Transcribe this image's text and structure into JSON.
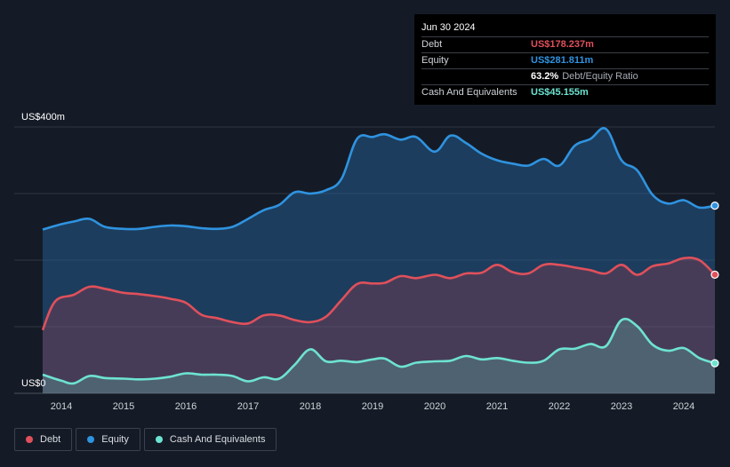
{
  "tooltip": {
    "date": "Jun 30 2024",
    "debt_label": "Debt",
    "debt_value": "US$178.237m",
    "equity_label": "Equity",
    "equity_value": "US$281.811m",
    "ratio_pct": "63.2%",
    "ratio_label": "Debt/Equity Ratio",
    "cash_label": "Cash And Equivalents",
    "cash_value": "US$45.155m"
  },
  "colors": {
    "debt": "#e0505b",
    "equity": "#2f93e0",
    "cash": "#6de3d1",
    "background": "#151b26"
  },
  "legend": [
    {
      "label": "Debt",
      "color": "#e0505b"
    },
    {
      "label": "Equity",
      "color": "#2f93e0"
    },
    {
      "label": "Cash And Equivalents",
      "color": "#6de3d1"
    }
  ],
  "chart_data": {
    "type": "area",
    "title": "",
    "xlabel": "",
    "ylabel": "",
    "ylim": [
      0,
      400
    ],
    "y_tick_labels": [
      {
        "value": 400,
        "label": "US$400m"
      },
      {
        "value": 0,
        "label": "US$0"
      }
    ],
    "x_tick_labels": [
      "2014",
      "2015",
      "2016",
      "2017",
      "2018",
      "2019",
      "2020",
      "2021",
      "2022",
      "2023",
      "2024"
    ],
    "x_range": [
      2013.7,
      2024.5
    ],
    "grid": true,
    "legend_position": "bottom-left",
    "series": [
      {
        "name": "Equity",
        "x": [
          2013.7,
          2014.0,
          2014.2,
          2014.45,
          2014.7,
          2015.0,
          2015.25,
          2015.5,
          2015.75,
          2016.0,
          2016.25,
          2016.5,
          2016.75,
          2017.0,
          2017.25,
          2017.5,
          2017.75,
          2018.0,
          2018.25,
          2018.5,
          2018.75,
          2019.0,
          2019.2,
          2019.45,
          2019.7,
          2020.0,
          2020.25,
          2020.5,
          2020.75,
          2021.0,
          2021.25,
          2021.5,
          2021.75,
          2022.0,
          2022.25,
          2022.5,
          2022.75,
          2023.0,
          2023.25,
          2023.5,
          2023.75,
          2024.0,
          2024.25,
          2024.5
        ],
        "values": [
          246,
          254,
          258,
          262,
          250,
          247,
          247,
          250,
          252,
          251,
          248,
          247,
          250,
          262,
          275,
          283,
          302,
          300,
          305,
          322,
          382,
          385,
          389,
          381,
          385,
          363,
          387,
          376,
          360,
          350,
          345,
          342,
          352,
          342,
          372,
          382,
          397,
          350,
          335,
          298,
          285,
          290,
          279,
          281.8
        ]
      },
      {
        "name": "Debt",
        "x": [
          2013.7,
          2013.9,
          2014.2,
          2014.45,
          2014.7,
          2015.0,
          2015.25,
          2015.5,
          2015.75,
          2016.0,
          2016.25,
          2016.5,
          2016.75,
          2017.0,
          2017.25,
          2017.5,
          2017.75,
          2018.0,
          2018.25,
          2018.5,
          2018.75,
          2019.0,
          2019.2,
          2019.45,
          2019.7,
          2020.0,
          2020.25,
          2020.5,
          2020.75,
          2021.0,
          2021.25,
          2021.5,
          2021.75,
          2022.0,
          2022.25,
          2022.5,
          2022.75,
          2023.0,
          2023.25,
          2023.5,
          2023.75,
          2024.0,
          2024.25,
          2024.5
        ],
        "values": [
          95,
          138,
          148,
          160,
          157,
          151,
          149,
          146,
          142,
          136,
          118,
          113,
          107,
          105,
          117,
          117,
          110,
          107,
          115,
          140,
          164,
          165,
          166,
          176,
          173,
          178,
          173,
          180,
          181,
          193,
          182,
          180,
          193,
          193,
          189,
          185,
          180,
          193,
          178,
          191,
          195,
          203,
          200,
          178.2
        ]
      },
      {
        "name": "Cash And Equivalents",
        "x": [
          2013.7,
          2014.0,
          2014.2,
          2014.45,
          2014.7,
          2015.0,
          2015.25,
          2015.5,
          2015.75,
          2016.0,
          2016.25,
          2016.5,
          2016.75,
          2017.0,
          2017.25,
          2017.5,
          2017.75,
          2018.0,
          2018.25,
          2018.5,
          2018.75,
          2019.0,
          2019.2,
          2019.45,
          2019.7,
          2020.0,
          2020.25,
          2020.5,
          2020.75,
          2021.0,
          2021.25,
          2021.5,
          2021.75,
          2022.0,
          2022.25,
          2022.5,
          2022.75,
          2023.0,
          2023.25,
          2023.5,
          2023.75,
          2024.0,
          2024.25,
          2024.5
        ],
        "values": [
          28,
          19,
          15,
          26,
          23,
          22,
          21,
          22,
          25,
          30,
          28,
          28,
          26,
          18,
          24,
          22,
          43,
          66,
          48,
          49,
          47,
          51,
          52,
          40,
          46,
          48,
          49,
          56,
          51,
          53,
          49,
          46,
          49,
          66,
          67,
          74,
          71,
          110,
          101,
          73,
          64,
          68,
          53,
          45.2
        ]
      }
    ]
  }
}
